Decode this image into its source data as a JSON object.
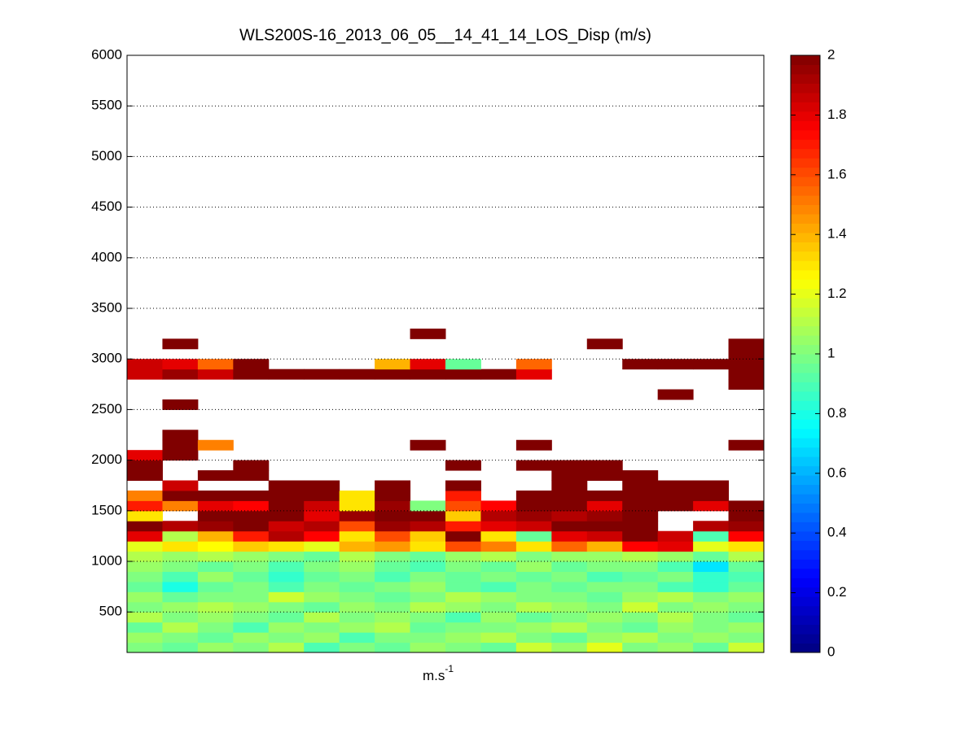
{
  "chart_data": {
    "type": "heatmap",
    "title": "WLS200S-16_2013_06_05__14_41_14_LOS_Disp (m/s)",
    "xlabel": "m.s",
    "xlabel_sup": "-1",
    "colormap": "jet",
    "clim": [
      0,
      2
    ],
    "cticks": [
      0,
      0.2,
      0.4,
      0.6,
      0.8,
      1,
      1.2,
      1.4,
      1.6,
      1.8,
      2
    ],
    "ylim": [
      100,
      6000
    ],
    "yticks": [
      500,
      1000,
      1500,
      2000,
      2500,
      3000,
      3500,
      4000,
      4500,
      5000,
      5500,
      6000
    ],
    "grid": true,
    "y_bins": [
      100,
      200,
      300,
      400,
      500,
      600,
      700,
      800,
      900,
      1000,
      1100,
      1200,
      1300,
      1400,
      1500,
      1600,
      1700,
      1800,
      1900,
      2000,
      2100,
      2200,
      2300,
      2400,
      2500,
      2600,
      2700,
      2800,
      2900,
      3000,
      3100,
      3200,
      3300
    ],
    "z": [
      [
        1.0,
        0.95,
        1.05,
        1.0,
        1.1,
        0.9,
        1.0,
        0.95,
        1.05,
        1.0,
        0.95,
        1.15,
        1.05,
        1.2,
        1.0,
        1.05,
        0.95,
        1.15
      ],
      [
        1.05,
        1.0,
        0.95,
        1.05,
        1.0,
        1.05,
        0.9,
        1.0,
        1.0,
        1.05,
        1.1,
        1.0,
        0.95,
        1.05,
        1.1,
        1.0,
        1.05,
        1.0
      ],
      [
        0.95,
        1.1,
        1.0,
        0.9,
        1.05,
        1.0,
        1.05,
        1.1,
        0.95,
        1.0,
        1.0,
        1.05,
        1.1,
        1.0,
        0.95,
        1.05,
        1.0,
        1.05
      ],
      [
        1.1,
        1.0,
        1.05,
        1.0,
        0.95,
        1.1,
        1.0,
        1.05,
        1.0,
        0.9,
        1.05,
        0.95,
        1.0,
        1.05,
        1.0,
        1.1,
        1.0,
        0.95
      ],
      [
        1.0,
        1.05,
        1.1,
        1.05,
        1.0,
        0.95,
        1.05,
        1.0,
        1.1,
        1.05,
        1.0,
        1.1,
        1.05,
        1.0,
        1.15,
        1.0,
        1.05,
        1.0
      ],
      [
        1.05,
        0.95,
        1.0,
        1.0,
        1.15,
        1.05,
        1.0,
        0.95,
        1.0,
        1.1,
        1.05,
        1.0,
        1.0,
        0.95,
        1.05,
        1.1,
        1.0,
        1.05
      ],
      [
        0.95,
        0.8,
        0.95,
        1.0,
        0.9,
        1.0,
        0.95,
        1.0,
        1.05,
        0.95,
        0.9,
        1.0,
        0.95,
        1.0,
        1.0,
        0.9,
        0.85,
        0.95
      ],
      [
        1.0,
        0.9,
        1.05,
        0.95,
        0.85,
        0.95,
        1.0,
        0.9,
        1.0,
        0.95,
        1.0,
        0.95,
        1.0,
        0.9,
        0.95,
        1.0,
        0.85,
        0.9
      ],
      [
        1.05,
        1.0,
        0.95,
        1.0,
        0.9,
        1.0,
        1.05,
        0.95,
        0.9,
        1.0,
        0.95,
        1.05,
        0.95,
        1.0,
        1.0,
        0.9,
        0.7,
        0.95
      ],
      [
        1.1,
        1.05,
        1.1,
        1.05,
        1.0,
        0.95,
        1.1,
        1.0,
        0.95,
        1.05,
        1.1,
        1.0,
        1.05,
        1.05,
        1.1,
        1.05,
        0.95,
        1.1
      ],
      [
        1.2,
        1.3,
        1.25,
        1.35,
        1.3,
        1.2,
        1.4,
        1.45,
        1.3,
        1.6,
        1.5,
        1.3,
        1.55,
        1.4,
        1.75,
        1.8,
        1.2,
        1.3
      ],
      [
        1.8,
        1.1,
        1.4,
        1.7,
        1.9,
        1.75,
        1.3,
        1.6,
        1.35,
        2.0,
        1.3,
        0.95,
        1.8,
        1.85,
        2.0,
        1.85,
        0.9,
        1.75
      ],
      [
        2.0,
        1.9,
        1.95,
        2.0,
        1.85,
        1.9,
        1.6,
        1.95,
        1.9,
        1.7,
        1.8,
        1.85,
        2.0,
        2.0,
        2.0,
        null,
        1.9,
        1.95
      ],
      [
        1.3,
        null,
        2.0,
        2.0,
        2.0,
        1.8,
        1.95,
        2.0,
        2.0,
        1.35,
        1.9,
        1.95,
        1.9,
        1.95,
        2.0,
        null,
        null,
        2.0
      ],
      [
        1.7,
        1.5,
        1.8,
        1.75,
        2.0,
        1.85,
        1.3,
        1.95,
        1.0,
        1.6,
        1.75,
        2.0,
        2.0,
        1.8,
        2.0,
        2.0,
        1.8,
        2.0
      ],
      [
        1.5,
        2.0,
        2.0,
        2.0,
        2.0,
        2.0,
        1.3,
        2.0,
        null,
        1.7,
        null,
        2.0,
        2.0,
        2.0,
        2.0,
        2.0,
        2.0,
        null
      ],
      [
        null,
        1.85,
        null,
        null,
        2.0,
        2.0,
        null,
        2.0,
        null,
        2.0,
        null,
        null,
        2.0,
        null,
        2.0,
        2.0,
        2.0,
        null
      ],
      [
        2.0,
        null,
        2.0,
        2.0,
        null,
        null,
        null,
        null,
        null,
        null,
        null,
        null,
        2.0,
        2.0,
        2.0,
        null,
        null,
        null
      ],
      [
        2.0,
        null,
        null,
        2.0,
        null,
        null,
        null,
        null,
        null,
        2.0,
        null,
        2.0,
        2.0,
        2.0,
        null,
        null,
        null,
        null
      ],
      [
        1.8,
        2.0,
        null,
        null,
        null,
        null,
        null,
        null,
        null,
        null,
        null,
        null,
        null,
        null,
        null,
        null,
        null,
        null
      ],
      [
        null,
        2.0,
        1.5,
        null,
        null,
        null,
        null,
        null,
        2.0,
        null,
        null,
        2.0,
        null,
        null,
        null,
        null,
        null,
        2.0
      ],
      [
        null,
        2.0,
        null,
        null,
        null,
        null,
        null,
        null,
        null,
        null,
        null,
        null,
        null,
        null,
        null,
        null,
        null,
        null
      ],
      [
        null,
        null,
        null,
        null,
        null,
        null,
        null,
        null,
        null,
        null,
        null,
        null,
        null,
        null,
        null,
        null,
        null,
        null
      ],
      [
        null,
        null,
        null,
        null,
        null,
        null,
        null,
        null,
        null,
        null,
        null,
        null,
        null,
        null,
        null,
        null,
        null,
        null
      ],
      [
        null,
        2.0,
        null,
        null,
        null,
        null,
        null,
        null,
        null,
        null,
        null,
        null,
        null,
        null,
        null,
        null,
        null,
        null
      ],
      [
        null,
        null,
        null,
        null,
        null,
        null,
        null,
        null,
        null,
        null,
        null,
        null,
        null,
        null,
        null,
        2.0,
        null,
        null
      ],
      [
        null,
        null,
        null,
        null,
        null,
        null,
        null,
        null,
        null,
        null,
        null,
        null,
        null,
        null,
        null,
        null,
        null,
        2.0
      ],
      [
        1.85,
        1.95,
        1.85,
        2.0,
        2.0,
        2.0,
        2.0,
        2.0,
        2.0,
        2.0,
        2.0,
        1.8,
        null,
        null,
        null,
        null,
        null,
        2.0
      ],
      [
        1.85,
        1.8,
        1.55,
        2.0,
        null,
        null,
        null,
        1.4,
        1.8,
        0.95,
        null,
        1.55,
        null,
        null,
        2.0,
        2.0,
        2.0,
        2.0
      ],
      [
        null,
        null,
        null,
        null,
        null,
        null,
        null,
        null,
        null,
        null,
        null,
        null,
        null,
        null,
        null,
        null,
        null,
        2.0
      ],
      [
        null,
        2.0,
        null,
        null,
        null,
        null,
        null,
        null,
        null,
        null,
        null,
        null,
        null,
        2.0,
        null,
        null,
        null,
        2.0
      ],
      [
        null,
        null,
        null,
        null,
        null,
        null,
        null,
        null,
        2.0,
        null,
        null,
        null,
        null,
        null,
        null,
        null,
        null,
        null
      ]
    ]
  }
}
